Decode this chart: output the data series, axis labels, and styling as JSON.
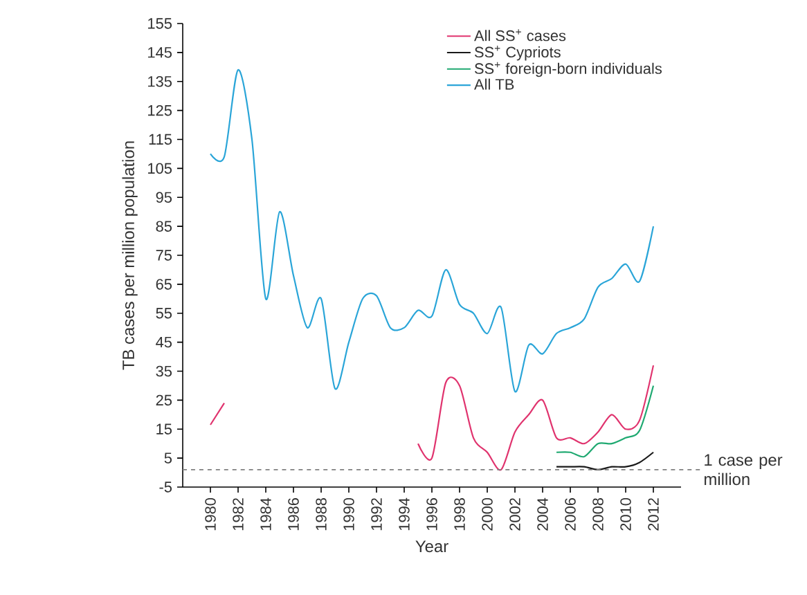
{
  "chart_data": {
    "type": "line",
    "xlabel": "Year",
    "ylabel": "TB cases per million population",
    "x": [
      1980,
      1981,
      1982,
      1983,
      1984,
      1985,
      1986,
      1987,
      1988,
      1989,
      1990,
      1991,
      1992,
      1993,
      1994,
      1995,
      1996,
      1997,
      1998,
      1999,
      2000,
      2001,
      2002,
      2003,
      2004,
      2005,
      2006,
      2007,
      2008,
      2009,
      2010,
      2011,
      2012
    ],
    "series": [
      {
        "name": "All SS$^{+}$ cases",
        "color": "#e0336e",
        "values": [
          16.5,
          24,
          null,
          null,
          null,
          null,
          null,
          null,
          null,
          null,
          null,
          null,
          null,
          null,
          null,
          10,
          5,
          31,
          30,
          12,
          7,
          1,
          14,
          20,
          25,
          12,
          12,
          10,
          14,
          20,
          15,
          18,
          37
        ]
      },
      {
        "name": "SS$^{+}$ Cypriots",
        "color": "#1a1a1a",
        "values": [
          null,
          null,
          null,
          null,
          null,
          null,
          null,
          null,
          null,
          null,
          null,
          null,
          null,
          null,
          null,
          null,
          null,
          null,
          null,
          null,
          null,
          null,
          null,
          null,
          null,
          2,
          2,
          2,
          1,
          2,
          2,
          3.5,
          7
        ]
      },
      {
        "name": "SS$^{+}$ foreign-born individuals",
        "color": "#1fa971",
        "values": [
          null,
          null,
          null,
          null,
          null,
          null,
          null,
          null,
          null,
          null,
          null,
          null,
          null,
          null,
          null,
          null,
          null,
          null,
          null,
          null,
          null,
          null,
          null,
          null,
          null,
          7,
          7,
          5.5,
          10,
          10,
          12,
          14.5,
          30
        ]
      },
      {
        "name": "All TB",
        "color": "#2aa5d8",
        "values": [
          110,
          109,
          139,
          115,
          60,
          90,
          68,
          50,
          60,
          29,
          45,
          60,
          61,
          50,
          50,
          56,
          54,
          70,
          58,
          55,
          48,
          57,
          28,
          44,
          41,
          48,
          50,
          53,
          64,
          67,
          72,
          66,
          85
        ]
      }
    ],
    "xlim": [
      1978,
      2014
    ],
    "xticks": [
      1980,
      1982,
      1984,
      1986,
      1988,
      1990,
      1992,
      1994,
      1996,
      1998,
      2000,
      2002,
      2004,
      2006,
      2008,
      2010,
      2012
    ],
    "ylim": [
      -5,
      155
    ],
    "yticks": [
      -5,
      5,
      15,
      25,
      35,
      45,
      55,
      65,
      75,
      85,
      95,
      105,
      115,
      125,
      135,
      145,
      155
    ],
    "ref_lines": [
      {
        "axis": "y",
        "value": 1,
        "label": "1 case per million",
        "color": "#808080",
        "line_style": "dashed"
      }
    ],
    "legend": "top right",
    "grid": false
  }
}
